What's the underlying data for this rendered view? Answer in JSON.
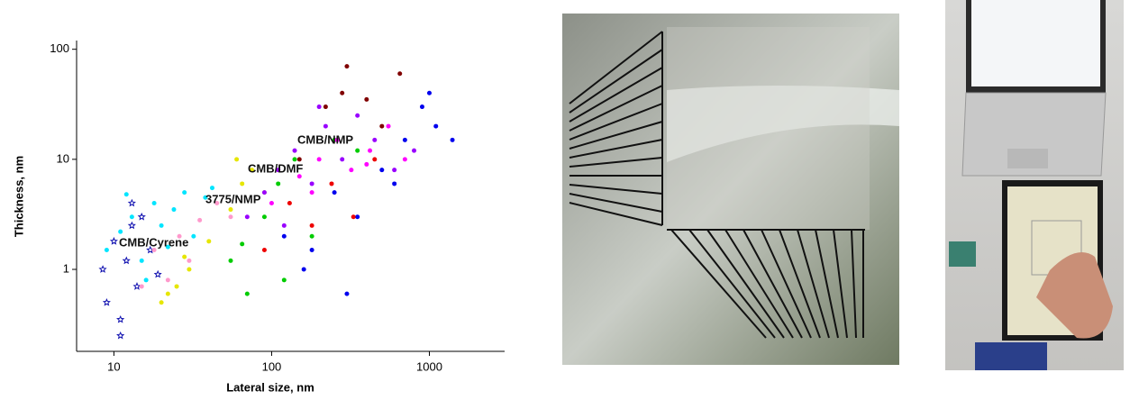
{
  "chart_data": {
    "type": "scatter",
    "xlabel": "Lateral size, nm",
    "ylabel": "Thickness, nm",
    "xscale": "log",
    "yscale": "log",
    "xlim": [
      5.8,
      3000
    ],
    "ylim": [
      0.18,
      120
    ],
    "xticks": [
      10,
      100,
      1000
    ],
    "yticks": [
      1,
      10,
      100
    ],
    "grid": false,
    "legend": false,
    "annotations": [
      "CMB/NMP",
      "CMB/DMF",
      "3775/NMP",
      "CMB/Cyrene"
    ],
    "series": [
      {
        "color": "#1010b0",
        "marker": "star",
        "x": [
          9,
          10,
          11,
          12,
          13,
          14,
          15,
          17,
          19,
          8.5,
          11,
          13
        ],
        "y": [
          0.5,
          1.8,
          0.35,
          1.2,
          2.5,
          0.7,
          3,
          1.5,
          0.9,
          1.0,
          0.25,
          4
        ]
      },
      {
        "color": "#00e5ff",
        "marker": "circle",
        "x": [
          9,
          11,
          13,
          15,
          18,
          20,
          24,
          28,
          32,
          38,
          42,
          16,
          22,
          12
        ],
        "y": [
          1.5,
          2.2,
          3,
          1.2,
          4,
          2.5,
          3.5,
          5,
          2,
          4.5,
          5.5,
          0.8,
          1.6,
          4.8
        ]
      },
      {
        "color": "#e6e600",
        "marker": "circle",
        "x": [
          20,
          25,
          30,
          40,
          55,
          65,
          75,
          90,
          60,
          22,
          28
        ],
        "y": [
          0.5,
          0.7,
          1,
          1.8,
          3.5,
          6,
          8,
          5,
          10,
          0.6,
          1.3
        ]
      },
      {
        "color": "#ff99cc",
        "marker": "circle",
        "x": [
          15,
          18,
          22,
          26,
          30,
          35,
          45,
          55
        ],
        "y": [
          0.7,
          1.5,
          0.8,
          2,
          1.2,
          2.8,
          4,
          3
        ]
      },
      {
        "color": "#00cc00",
        "marker": "circle",
        "x": [
          55,
          70,
          90,
          110,
          140,
          180,
          250,
          350,
          65,
          120
        ],
        "y": [
          1.2,
          0.6,
          3,
          6,
          10,
          2,
          15,
          12,
          1.7,
          0.8
        ]
      },
      {
        "color": "#9900ff",
        "marker": "circle",
        "x": [
          70,
          90,
          110,
          140,
          180,
          220,
          280,
          350,
          450,
          600,
          800,
          120,
          200
        ],
        "y": [
          3,
          5,
          8,
          12,
          6,
          20,
          10,
          25,
          15,
          8,
          12,
          2.5,
          30
        ]
      },
      {
        "color": "#ff00ff",
        "marker": "circle",
        "x": [
          100,
          150,
          200,
          260,
          320,
          420,
          550,
          700,
          180,
          400
        ],
        "y": [
          4,
          7,
          10,
          15,
          8,
          12,
          20,
          10,
          5,
          9
        ]
      },
      {
        "color": "#0000ee",
        "marker": "circle",
        "x": [
          120,
          180,
          250,
          350,
          500,
          700,
          900,
          1100,
          1400,
          1000,
          300,
          600,
          160
        ],
        "y": [
          2,
          1.5,
          5,
          3,
          8,
          15,
          30,
          20,
          15,
          40,
          0.6,
          6,
          1
        ]
      },
      {
        "color": "#800000",
        "marker": "circle",
        "x": [
          150,
          220,
          300,
          400,
          500,
          650,
          280
        ],
        "y": [
          10,
          30,
          70,
          35,
          20,
          60,
          40
        ]
      },
      {
        "color": "#ee0000",
        "marker": "circle",
        "x": [
          90,
          130,
          180,
          240,
          330,
          450
        ],
        "y": [
          1.5,
          4,
          2.5,
          6,
          3,
          10
        ]
      }
    ]
  }
}
